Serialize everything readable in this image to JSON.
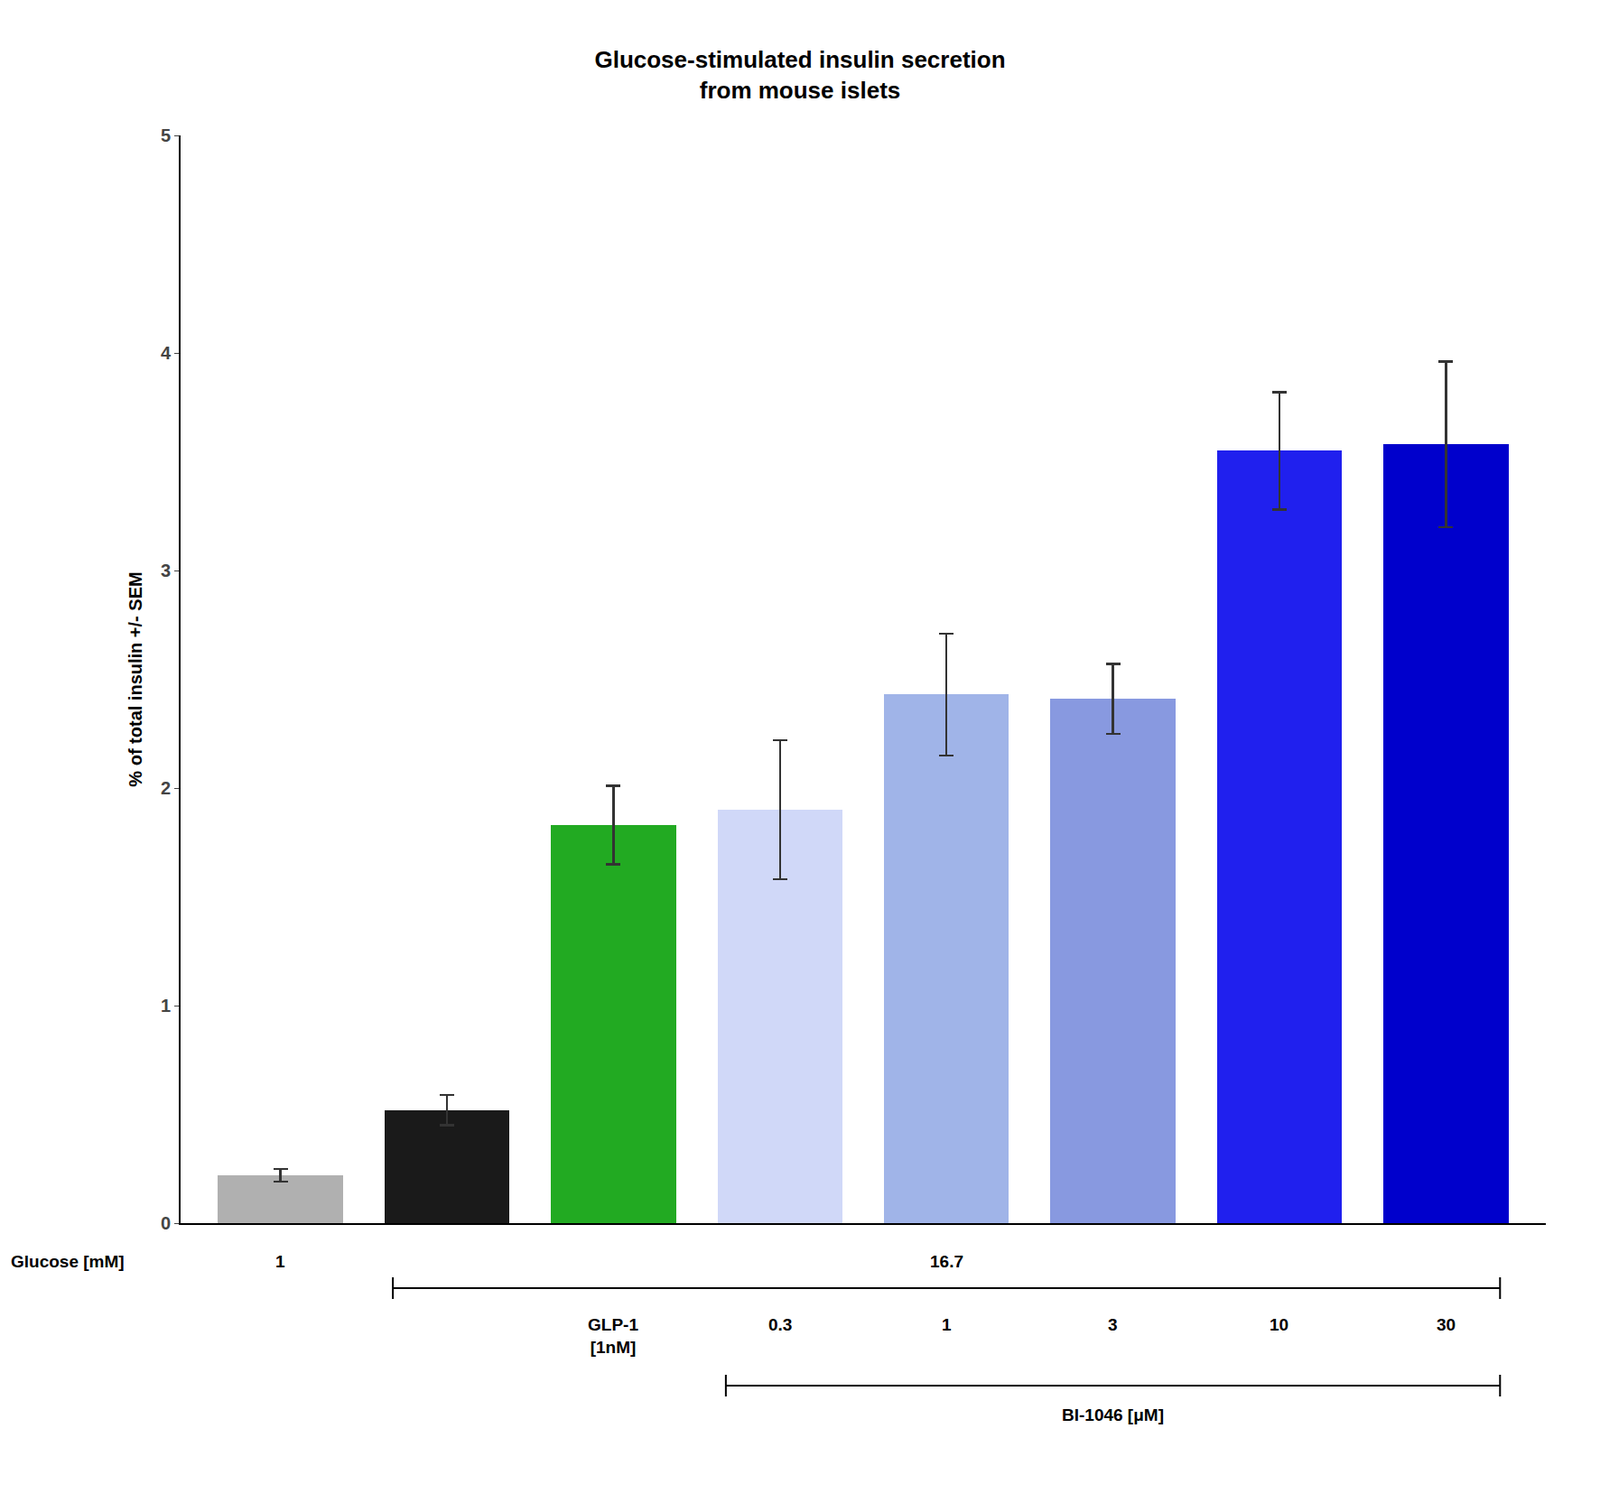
{
  "chart_data": {
    "type": "bar",
    "title": "Glucose-stimulated insulin secretion\nfrom mouse islets",
    "ylabel": "% of total insulin +/- SEM",
    "categories": [
      null,
      null,
      null,
      null,
      null,
      null,
      null,
      null
    ],
    "values": [
      0.22,
      0.52,
      1.83,
      1.9,
      2.43,
      2.41,
      3.55,
      3.58
    ],
    "errors": [
      0.03,
      0.07,
      0.18,
      0.32,
      0.28,
      0.16,
      0.27,
      0.38
    ],
    "colors": [
      "#b0b0b0",
      "#1a1a1a",
      "#22aa22",
      "#d0d8f8",
      "#a0b4e8",
      "#8899e0",
      "#2020ee",
      "#0000cc"
    ],
    "ylim": [
      0,
      5
    ],
    "yticks": [
      0,
      1,
      2,
      3,
      4,
      5
    ],
    "grid": false,
    "tick_labels": "y",
    "annotation_rows": [
      {
        "label": "Glucose [mM]",
        "groups": [
          {
            "text": "1",
            "bars": [
              0,
              0
            ]
          },
          {
            "text": "16.7",
            "bars": [
              1,
              7
            ]
          }
        ]
      },
      {
        "groups": [
          {
            "text": "GLP-1\n[1nM]",
            "bars": [
              2,
              2
            ]
          },
          {
            "text": "0.3",
            "bars": [
              3,
              3
            ]
          },
          {
            "text": "1",
            "bars": [
              4,
              4
            ]
          },
          {
            "text": "3",
            "bars": [
              5,
              5
            ]
          },
          {
            "text": "10",
            "bars": [
              6,
              6
            ]
          },
          {
            "text": "30",
            "bars": [
              7,
              7
            ]
          }
        ]
      },
      {
        "groups": [
          {
            "text": "BI-1046 [μM]",
            "bars": [
              3,
              7
            ]
          }
        ]
      }
    ]
  }
}
